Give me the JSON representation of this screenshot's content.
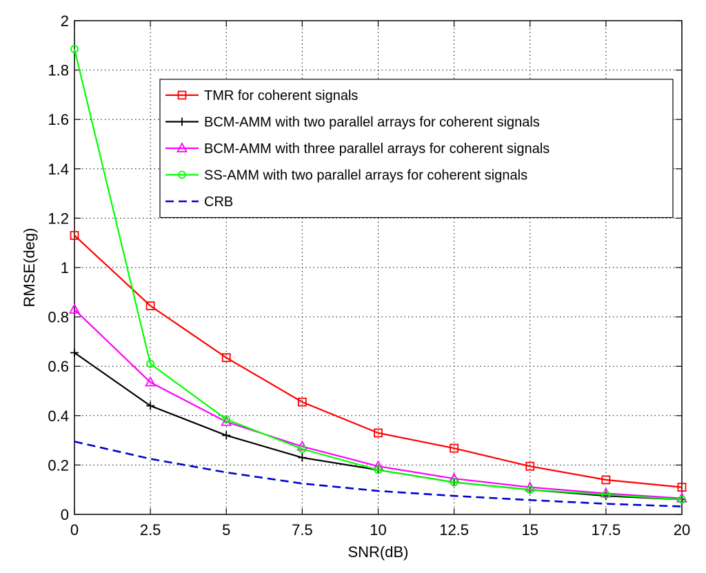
{
  "chart_data": {
    "type": "line",
    "title": "",
    "xlabel": "SNR(dB)",
    "ylabel": "RMSE(deg)",
    "xlim": [
      0,
      20
    ],
    "ylim": [
      0,
      2
    ],
    "xticks": [
      0,
      2.5,
      5,
      7.5,
      10,
      12.5,
      15,
      17.5,
      20
    ],
    "xtick_labels": [
      "0",
      "2.5",
      "5",
      "7.5",
      "10",
      "12.5",
      "15",
      "17.5",
      "20"
    ],
    "yticks": [
      0,
      0.2,
      0.4,
      0.6,
      0.8,
      1,
      1.2,
      1.4,
      1.6,
      1.8,
      2
    ],
    "ytick_labels": [
      "0",
      "0.2",
      "0.4",
      "0.6",
      "0.8",
      "1",
      "1.2",
      "1.4",
      "1.6",
      "1.8",
      "2"
    ],
    "grid": true,
    "legend_position": "top-right",
    "x": [
      0,
      2.5,
      5,
      7.5,
      10,
      12.5,
      15,
      17.5,
      20
    ],
    "series": [
      {
        "name": "TMR for coherent signals",
        "color": "#ff0000",
        "marker": "square",
        "line_style": "solid",
        "values": [
          1.13,
          0.845,
          0.635,
          0.455,
          0.33,
          0.268,
          0.195,
          0.14,
          0.11
        ]
      },
      {
        "name": "BCM-AMM with two parallel arrays for coherent signals",
        "color": "#000000",
        "marker": "plus",
        "line_style": "solid",
        "values": [
          0.655,
          0.44,
          0.32,
          0.23,
          0.18,
          0.13,
          0.1,
          0.075,
          0.06
        ]
      },
      {
        "name": "BCM-AMM with three parallel arrays for coherent signals",
        "color": "#ff00ff",
        "marker": "triangle",
        "line_style": "solid",
        "values": [
          0.83,
          0.535,
          0.375,
          0.275,
          0.195,
          0.145,
          0.11,
          0.085,
          0.065
        ]
      },
      {
        "name": "SS-AMM with two parallel arrays for coherent signals",
        "color": "#00ff00",
        "marker": "circle",
        "line_style": "solid",
        "values": [
          1.885,
          0.61,
          0.385,
          0.265,
          0.18,
          0.13,
          0.1,
          0.08,
          0.06
        ]
      },
      {
        "name": "CRB",
        "color": "#0000cc",
        "marker": "none",
        "line_style": "dashed",
        "values": [
          0.295,
          0.225,
          0.17,
          0.125,
          0.095,
          0.075,
          0.058,
          0.043,
          0.032
        ]
      }
    ]
  }
}
